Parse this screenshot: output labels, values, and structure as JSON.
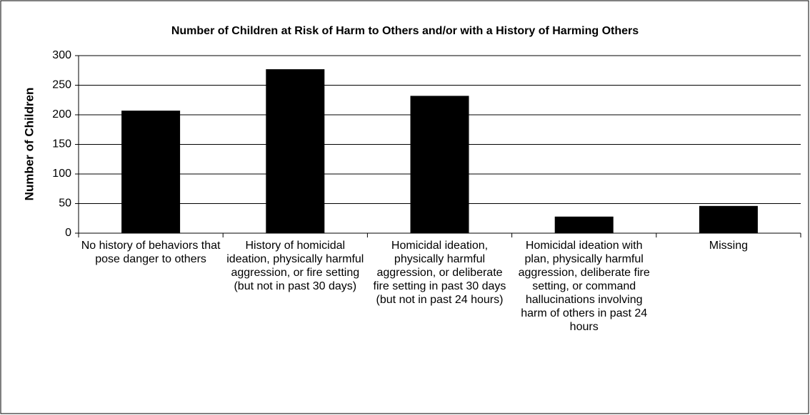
{
  "chart_data": {
    "type": "bar",
    "title": "Number of Children at Risk of Harm to Others and/or with a History of Harming Others",
    "y_label": "Number of Children",
    "categories": [
      "No history of behaviors that pose danger to others",
      "History of homicidal ideation, physically harmful aggression, or fire setting (but not in past 30 days)",
      "Homicidal ideation, physically harmful aggression, or deliberate fire setting in past 30 days (but not in past 24 hours)",
      "Homicidal ideation with plan, physically harmful aggression, deliberate fire setting, or command hallucinations involving harm of others in past 24 hours",
      "Missing"
    ],
    "values": [
      207,
      277,
      232,
      28,
      46
    ],
    "color": "#000000",
    "ylim": [
      0,
      300
    ],
    "yticks": [
      0,
      50,
      100,
      150,
      200,
      250,
      300
    ],
    "grid": true
  }
}
